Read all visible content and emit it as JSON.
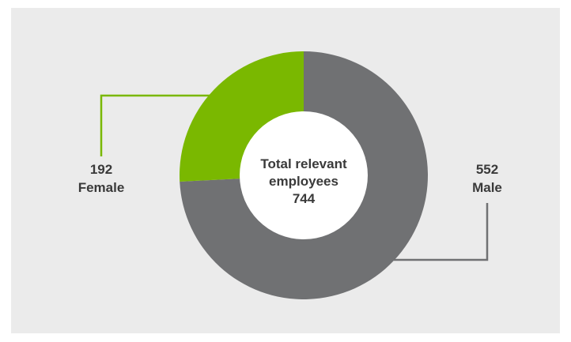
{
  "chart_data": {
    "type": "pie",
    "donut": true,
    "total_label_line1": "Total relevant",
    "total_label_line2": "employees",
    "total_value": "744",
    "slices": [
      {
        "label": "Male",
        "value": 552,
        "value_text": "552",
        "color": "#707173"
      },
      {
        "label": "Female",
        "value": 192,
        "value_text": "192",
        "color": "#7ab800"
      }
    ],
    "background_color": "#ebebeb",
    "center_color": "#ffffff"
  }
}
